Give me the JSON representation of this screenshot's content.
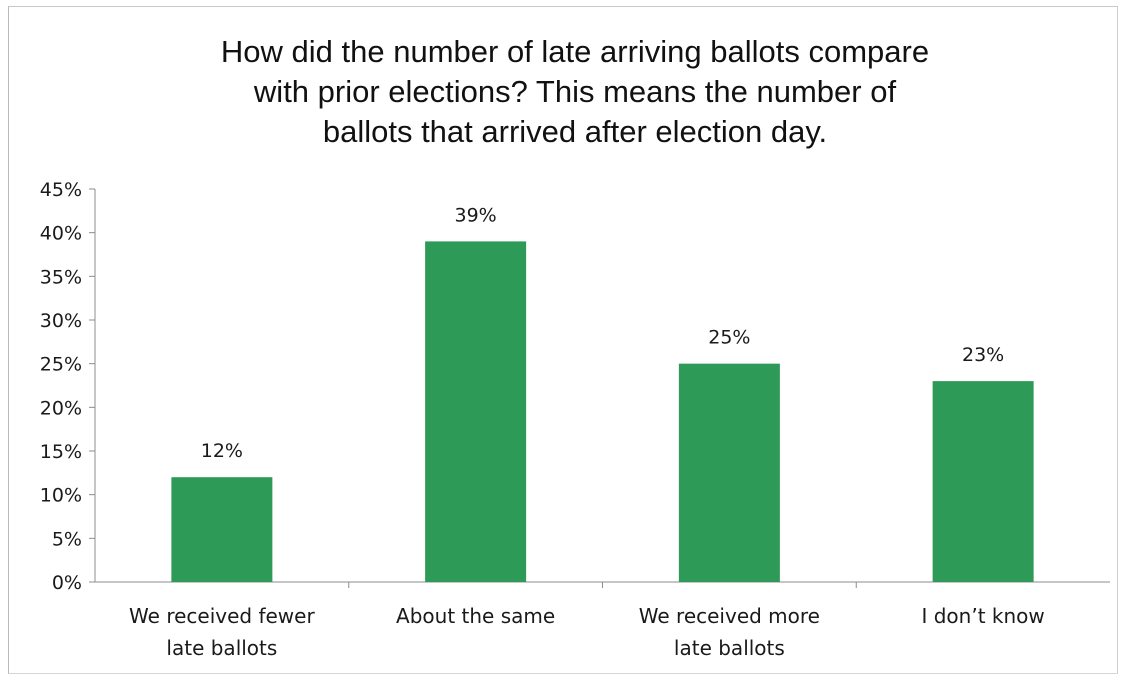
{
  "chart_data": {
    "type": "bar",
    "title_lines": [
      "How did the number of late arriving ballots compare",
      "with prior elections? This means the number of",
      "ballots that arrived after election day."
    ],
    "categories": [
      [
        "We received fewer",
        "late ballots"
      ],
      [
        "About the same"
      ],
      [
        "We received more",
        "late ballots"
      ],
      [
        "I don’t know"
      ]
    ],
    "values": [
      12,
      39,
      25,
      23
    ],
    "data_labels": [
      "12%",
      "39%",
      "25%",
      "23%"
    ],
    "y_ticks": [
      0,
      5,
      10,
      15,
      20,
      25,
      30,
      35,
      40,
      45
    ],
    "y_tick_labels": [
      "0%",
      "5%",
      "10%",
      "15%",
      "20%",
      "25%",
      "30%",
      "35%",
      "40%",
      "45%"
    ],
    "ylim": [
      0,
      45
    ],
    "bar_color": "#2e9a58",
    "grid": false,
    "legend": "none"
  }
}
